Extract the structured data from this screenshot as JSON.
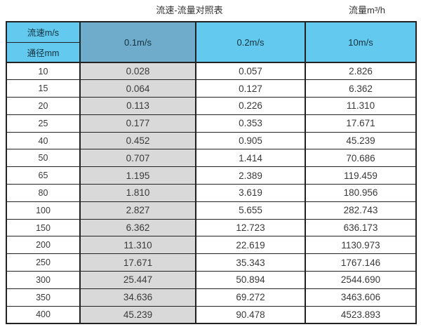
{
  "header": {
    "title": "流速-流量对照表",
    "unit_label": "流量m³/h"
  },
  "chart_data": {
    "type": "table",
    "title": "流速-流量对照表",
    "unit_label": "流量m³/h",
    "corner": {
      "top": "流速m/s",
      "bottom": "通径mm"
    },
    "velocity_columns": [
      "0.1m/s",
      "0.2m/s",
      "10m/s"
    ],
    "rows": [
      {
        "diameter_mm": "10",
        "flow_m3h": [
          "0.028",
          "0.057",
          "2.826"
        ]
      },
      {
        "diameter_mm": "15",
        "flow_m3h": [
          "0.064",
          "0.127",
          "6.362"
        ]
      },
      {
        "diameter_mm": "20",
        "flow_m3h": [
          "0.113",
          "0.226",
          "11.310"
        ]
      },
      {
        "diameter_mm": "25",
        "flow_m3h": [
          "0.177",
          "0.353",
          "17.671"
        ]
      },
      {
        "diameter_mm": "40",
        "flow_m3h": [
          "0.452",
          "0.905",
          "45.239"
        ]
      },
      {
        "diameter_mm": "50",
        "flow_m3h": [
          "0.707",
          "1.414",
          "70.686"
        ]
      },
      {
        "diameter_mm": "65",
        "flow_m3h": [
          "1.195",
          "2.389",
          "119.459"
        ]
      },
      {
        "diameter_mm": "80",
        "flow_m3h": [
          "1.810",
          "3.619",
          "180.956"
        ]
      },
      {
        "diameter_mm": "100",
        "flow_m3h": [
          "2.827",
          "5.655",
          "282.743"
        ]
      },
      {
        "diameter_mm": "150",
        "flow_m3h": [
          "6.362",
          "12.723",
          "636.173"
        ]
      },
      {
        "diameter_mm": "200",
        "flow_m3h": [
          "11.310",
          "22.619",
          "1130.973"
        ]
      },
      {
        "diameter_mm": "250",
        "flow_m3h": [
          "17.671",
          "35.343",
          "1767.146"
        ]
      },
      {
        "diameter_mm": "300",
        "flow_m3h": [
          "25.447",
          "50.894",
          "2544.690"
        ]
      },
      {
        "diameter_mm": "350",
        "flow_m3h": [
          "34.636",
          "69.272",
          "3463.606"
        ]
      },
      {
        "diameter_mm": "400",
        "flow_m3h": [
          "45.239",
          "90.478",
          "4523.893"
        ]
      }
    ]
  },
  "colors": {
    "header-blue": "#63C9EE",
    "header-blue-dark": "#6FACCB",
    "col-gray": "#D9D9D9",
    "border-dark": "#222222",
    "text-dark": "#3A3A3A"
  }
}
